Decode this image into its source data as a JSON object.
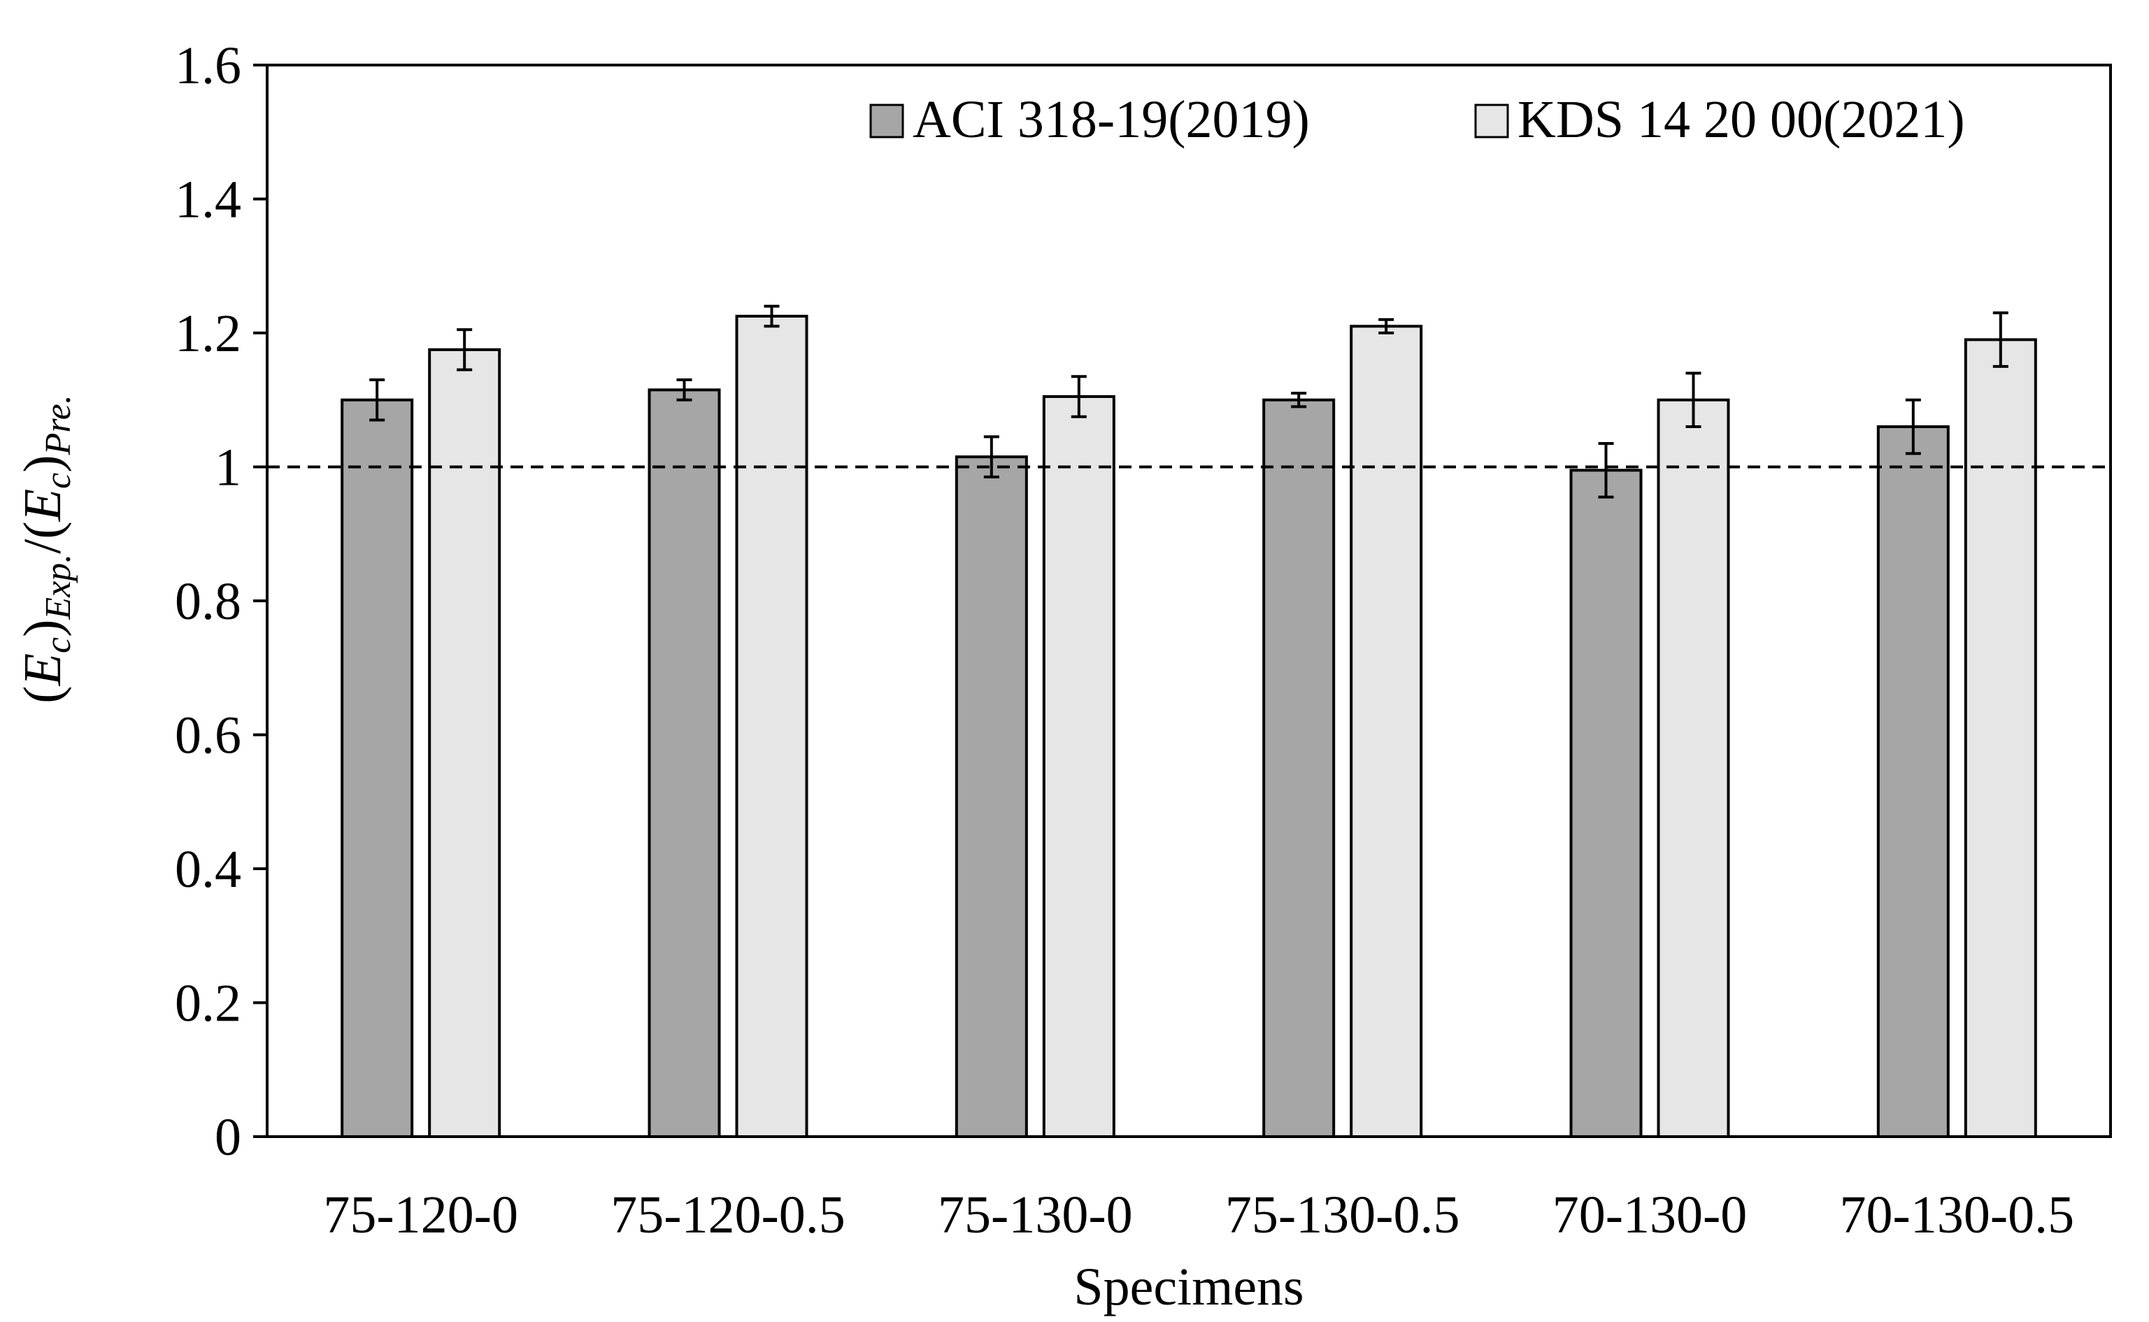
{
  "chart_data": {
    "type": "bar",
    "categories": [
      "75-120-0",
      "75-120-0.5",
      "75-130-0",
      "75-130-0.5",
      "70-130-0",
      "70-130-0.5"
    ],
    "series": [
      {
        "name": "ACI 318-19(2019)",
        "values": [
          1.1,
          1.115,
          1.015,
          1.1,
          0.995,
          1.06
        ],
        "errors": [
          0.03,
          0.015,
          0.03,
          0.01,
          0.04,
          0.04
        ],
        "color": "#a6a6a6"
      },
      {
        "name": "KDS 14 20 00(2021)",
        "values": [
          1.175,
          1.225,
          1.105,
          1.21,
          1.1,
          1.19
        ],
        "errors": [
          0.03,
          0.015,
          0.03,
          0.01,
          0.04,
          0.04
        ],
        "color": "#e6e6e6"
      }
    ],
    "xlabel": "Specimens",
    "ylabel": {
      "open1": "(",
      "sym1": "E",
      "sub1": "c",
      "close1": ")",
      "exp1": "Exp.",
      "slash": "/(",
      "sym2": "E",
      "sub2": "c",
      "close2": ")",
      "exp2": "Pre."
    },
    "ylim": [
      0,
      1.6
    ],
    "yticks": [
      0,
      0.2,
      0.4,
      0.6,
      0.8,
      1,
      1.2,
      1.4,
      1.6
    ],
    "ytick_labels": [
      "0",
      "0.2",
      "0.4",
      "0.6",
      "0.8",
      "1",
      "1.2",
      "1.4",
      "1.6"
    ],
    "reference_line": {
      "y": 1,
      "style": "dashed"
    },
    "grid": false,
    "legend_position": "top-right"
  }
}
